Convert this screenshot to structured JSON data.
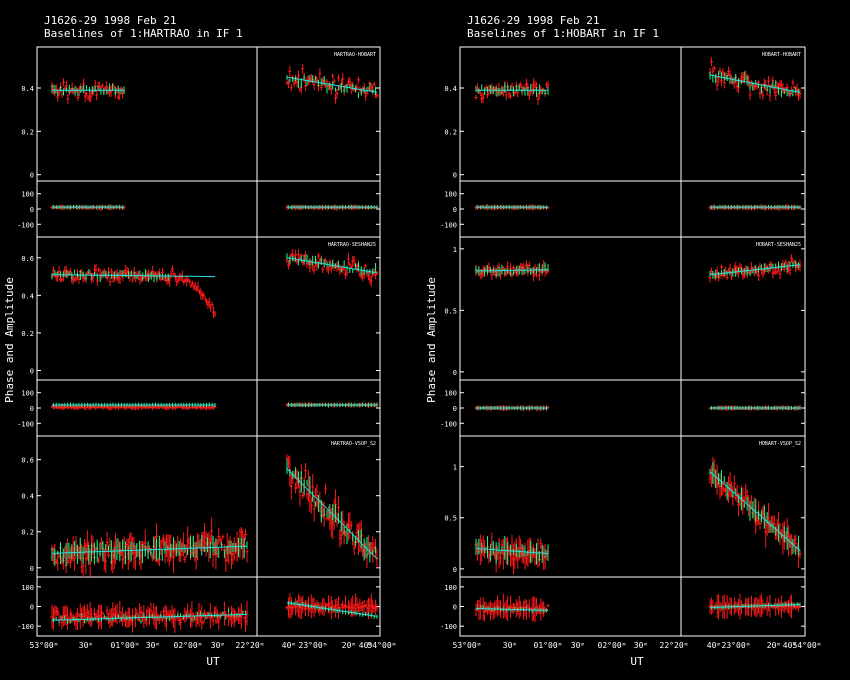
{
  "chart_data": [
    {
      "type": "scatter",
      "title_line1": "J1626-29  1998 Feb 21",
      "title_line2": "Baselines of 1:HARTRAO in IF 1",
      "ylabel": "Phase and Amplitude",
      "xlabel": "UT",
      "x_tick_labels": [
        "53°00ᵐ",
        "30ᵐ",
        "01°00ᵐ",
        "30ᵐ",
        "02°00ᵐ",
        "30ᵐ",
        "22°20ᵐ",
        "40ᵐ",
        "23°00ᵐ",
        "20ᵐ",
        "40ᵐ",
        "54°00ᵐ"
      ],
      "series_colors": {
        "data": "#ff1a1a",
        "model": "#1aff8c",
        "fit": "#29e0e0"
      },
      "baselines": [
        {
          "label": "HARTRAO-HOBART",
          "amp_ylim": [
            -0.02,
            0.58
          ],
          "amp_ticks": [
            "0",
            "0.2",
            "0.4"
          ],
          "amp_tick_values": [
            0,
            0.2,
            0.4
          ],
          "phase_ylim": [
            -170,
            170
          ],
          "phase_ticks": [
            "100",
            "0",
            "-100"
          ],
          "phase_tick_values": [
            100,
            0,
            -100
          ],
          "seg1": {
            "amp_mean": 0.39,
            "amp_scatter": 0.03,
            "fit_start": 0.39,
            "fit_end": 0.39,
            "phase_mean": 10,
            "phase_scatter": 6,
            "pfit_start": 12,
            "pfit_end": 12
          },
          "seg2": {
            "amp_mean": 0.42,
            "amp_scatter": 0.04,
            "fit_start": 0.45,
            "fit_end": 0.38,
            "phase_mean": 10,
            "phase_scatter": 6,
            "pfit_start": 12,
            "pfit_end": 12
          }
        },
        {
          "label": "HARTRAO-SESHAN25",
          "amp_ylim": [
            -0.04,
            0.7
          ],
          "amp_ticks": [
            "0",
            "0.2",
            "0.4",
            "0.6"
          ],
          "amp_tick_values": [
            0,
            0.2,
            0.4,
            0.6
          ],
          "phase_ylim": [
            -170,
            170
          ],
          "phase_ticks": [
            "100",
            "0",
            "-100"
          ],
          "phase_tick_values": [
            100,
            0,
            -100
          ],
          "seg1": {
            "amp_mean": 0.48,
            "amp_scatter": 0.03,
            "fit_start": 0.51,
            "fit_end": 0.5,
            "drop_to": 0.3,
            "phase_mean": 5,
            "phase_scatter": 8,
            "pfit_start": 20,
            "pfit_end": 20
          },
          "seg2": {
            "amp_mean": 0.56,
            "amp_scatter": 0.04,
            "fit_start": 0.6,
            "fit_end": 0.52,
            "phase_mean": 20,
            "phase_scatter": 6,
            "pfit_start": 20,
            "pfit_end": 20
          }
        },
        {
          "label": "HARTRAO-VSOP_S2",
          "amp_ylim": [
            -0.04,
            0.72
          ],
          "amp_ticks": [
            "0",
            "0.2",
            "0.4",
            "0.6"
          ],
          "amp_tick_values": [
            0,
            0.2,
            0.4,
            0.6
          ],
          "phase_ylim": [
            -140,
            140
          ],
          "phase_ticks": [
            "100",
            "0",
            "-100"
          ],
          "phase_tick_values": [
            100,
            0,
            -100
          ],
          "seg1": {
            "amp_mean": 0.09,
            "amp_scatter": 0.06,
            "fit_start": 0.08,
            "fit_end": 0.12,
            "phase_mean": -50,
            "phase_scatter": 50,
            "pfit_start": -70,
            "pfit_end": -40
          },
          "seg2": {
            "amp_mean": 0.28,
            "amp_scatter": 0.08,
            "fit_start": 0.55,
            "fit_end": 0.05,
            "phase_mean": 0,
            "phase_scatter": 20,
            "pfit_start": 20,
            "pfit_end": -50
          }
        }
      ]
    },
    {
      "type": "scatter",
      "title_line1": "J1626-29  1998 Feb 21",
      "title_line2": "Baselines of 1:HOBART in IF 1",
      "ylabel": "Phase and Amplitude",
      "xlabel": "UT",
      "x_tick_labels": [
        "53°00ᵐ",
        "30ᵐ",
        "01°00ᵐ",
        "30ᵐ",
        "02°00ᵐ",
        "30ᵐ",
        "22°20ᵐ",
        "40ᵐ",
        "23°00ᵐ",
        "20ᵐ",
        "40ᵐ",
        "54°00ᵐ"
      ],
      "series_colors": {
        "data": "#ff1a1a",
        "model": "#1aff8c",
        "fit": "#29e0e0"
      },
      "baselines": [
        {
          "label": "HOBART-HOBART",
          "amp_ylim": [
            -0.02,
            0.58
          ],
          "amp_ticks": [
            "0",
            "0.2",
            "0.4"
          ],
          "amp_tick_values": [
            0,
            0.2,
            0.4
          ],
          "phase_ylim": [
            -170,
            170
          ],
          "phase_ticks": [
            "100",
            "0",
            "-100"
          ],
          "phase_tick_values": [
            100,
            0,
            -100
          ],
          "seg1": {
            "amp_mean": 0.39,
            "amp_scatter": 0.03,
            "fit_start": 0.39,
            "fit_end": 0.39,
            "phase_mean": 10,
            "phase_scatter": 6,
            "pfit_start": 12,
            "pfit_end": 12
          },
          "seg2": {
            "amp_mean": 0.42,
            "amp_scatter": 0.04,
            "fit_start": 0.46,
            "fit_end": 0.38,
            "phase_mean": 10,
            "phase_scatter": 6,
            "pfit_start": 12,
            "pfit_end": 12
          }
        },
        {
          "label": "HOBART-SESHAN25",
          "amp_ylim": [
            -0.05,
            1.08
          ],
          "amp_ticks": [
            "0",
            "0.5",
            "1"
          ],
          "amp_tick_values": [
            0,
            0.5,
            1
          ],
          "phase_ylim": [
            -170,
            170
          ],
          "phase_ticks": [
            "100",
            "0",
            "-100"
          ],
          "phase_tick_values": [
            100,
            0,
            -100
          ],
          "seg1": {
            "amp_mean": 0.82,
            "amp_scatter": 0.04,
            "fit_start": 0.82,
            "fit_end": 0.83,
            "phase_mean": 0,
            "phase_scatter": 5,
            "pfit_start": 0,
            "pfit_end": 0
          },
          "seg2": {
            "amp_mean": 0.82,
            "amp_scatter": 0.05,
            "fit_start": 0.79,
            "fit_end": 0.87,
            "phase_mean": 0,
            "phase_scatter": 5,
            "pfit_start": 0,
            "pfit_end": 0
          }
        },
        {
          "label": "HOBART-VSOP_S2",
          "amp_ylim": [
            -0.06,
            1.28
          ],
          "amp_ticks": [
            "0",
            "0.5",
            "1"
          ],
          "amp_tick_values": [
            0,
            0.5,
            1
          ],
          "phase_ylim": [
            -140,
            140
          ],
          "phase_ticks": [
            "100",
            "0",
            "-100"
          ],
          "phase_tick_values": [
            100,
            0,
            -100
          ],
          "seg1": {
            "amp_mean": 0.18,
            "amp_scatter": 0.08,
            "fit_start": 0.2,
            "fit_end": 0.15,
            "phase_mean": -10,
            "phase_scatter": 25,
            "pfit_start": -10,
            "pfit_end": -20
          },
          "seg2": {
            "amp_mean": 0.6,
            "amp_scatter": 0.1,
            "fit_start": 0.95,
            "fit_end": 0.18,
            "phase_mean": 0,
            "phase_scatter": 10,
            "pfit_start": -5,
            "pfit_end": 10
          }
        }
      ]
    }
  ]
}
